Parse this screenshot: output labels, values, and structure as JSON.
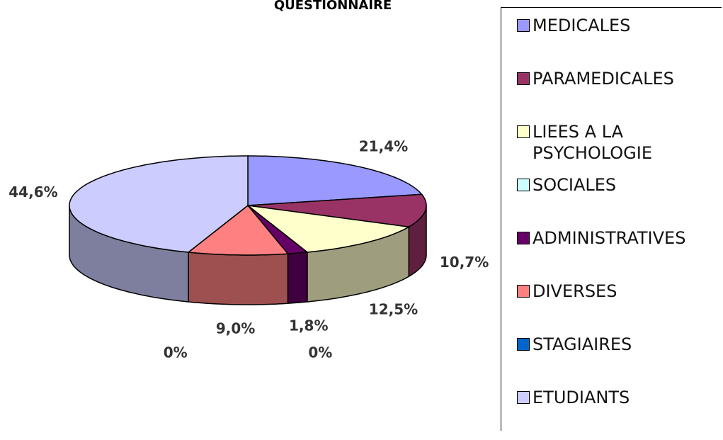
{
  "chart_data": {
    "type": "pie",
    "title": "QUESTIONNAIRE",
    "categories": [
      "MEDICALES",
      "PARAMEDICALES",
      "LIEES A LA PSYCHOLOGIE",
      "SOCIALES",
      "ADMINISTRATIVES",
      "DIVERSES",
      "STAGIAIRES",
      "ETUDIANTS"
    ],
    "values": [
      21.4,
      10.7,
      12.5,
      0,
      1.8,
      9.0,
      0,
      44.6
    ],
    "value_labels": [
      "21,4%",
      "10,7%",
      "12,5%",
      "0%",
      "1,8%",
      "9,0%",
      "0%",
      "44,6%"
    ],
    "colors": [
      "#9999ff",
      "#993366",
      "#ffffcc",
      "#ccffff",
      "#660066",
      "#ff8080",
      "#0066cc",
      "#ccccff"
    ],
    "legend": "right"
  }
}
